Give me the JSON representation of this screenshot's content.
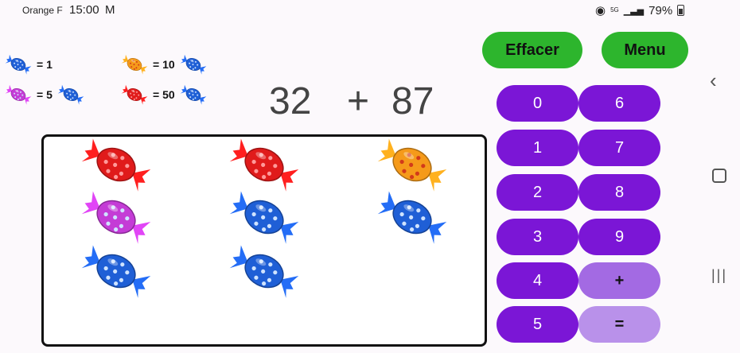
{
  "status": {
    "carrier": "Orange F",
    "time": "15:00",
    "network": "5G",
    "battery": "79%"
  },
  "legend": [
    {
      "value": "= 1"
    },
    {
      "value": "= 10"
    },
    {
      "value": "= 5"
    },
    {
      "value": "= 50"
    }
  ],
  "problem": {
    "a": "32",
    "op": "+",
    "b": "87"
  },
  "buttons": {
    "clear": "Effacer",
    "menu": "Menu"
  },
  "keypad": [
    "0",
    "6",
    "1",
    "7",
    "2",
    "8",
    "3",
    "9",
    "4",
    "+",
    "5",
    "="
  ],
  "candies": [
    {
      "color": "red"
    },
    {
      "color": "red"
    },
    {
      "color": "orange"
    },
    {
      "color": "purple"
    },
    {
      "color": "blue"
    },
    {
      "color": "blue"
    },
    {
      "color": "blue"
    },
    {
      "color": "blue"
    }
  ],
  "colors": {
    "blue": "#1f5fd6",
    "red": "#e01b1b",
    "orange": "#f59a1a",
    "purple": "#c43cd6",
    "accent": "#7b16d6",
    "green": "#2db52d"
  }
}
